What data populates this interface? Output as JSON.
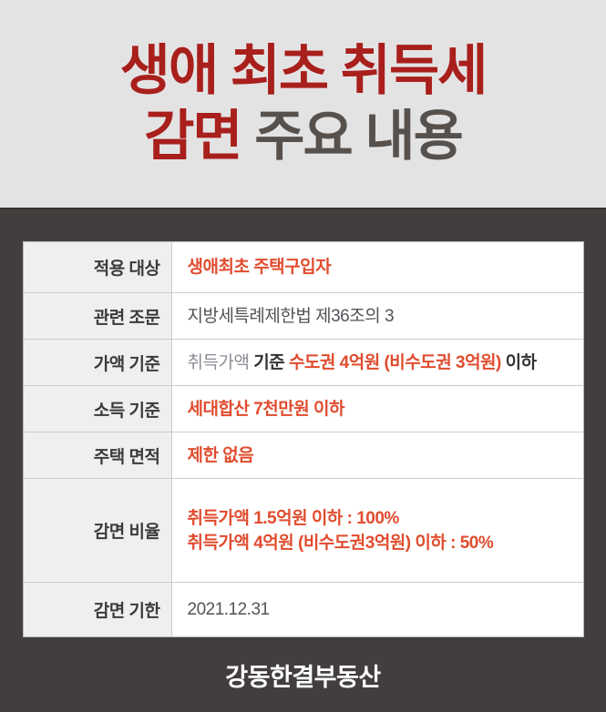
{
  "title": {
    "line1": "생애 최초 취득세",
    "line2_red": "감면",
    "line2_dark": " 주요 내용"
  },
  "colors": {
    "top_background": "#e4e3e3",
    "title_red": "#a81f1c",
    "title_dark_gray": "#56514d",
    "dark_background": "#433e3e",
    "label_cell_background": "#f0eff0",
    "accent_red": "#e04c2e",
    "value_dark": "#353132",
    "value_gray": "#555258",
    "value_muted_gray": "#8e8d95",
    "footer_text": "#ffffff"
  },
  "table": {
    "rows": [
      {
        "label": "적용 대상",
        "lines": [
          [
            {
              "t": "생애최초 주택구입자",
              "s": "red"
            }
          ]
        ]
      },
      {
        "label": "관련 조문",
        "lines": [
          [
            {
              "t": "지방세특례제한법 제36조의 3",
              "s": "gray"
            }
          ]
        ]
      },
      {
        "label": "가액 기준",
        "lines": [
          [
            {
              "t": "취득가액 ",
              "s": "muted"
            },
            {
              "t": "기준 ",
              "s": "dark"
            },
            {
              "t": "수도권 4억원 (비수도권 3억원)",
              "s": "red"
            },
            {
              "t": " 이하",
              "s": "dark"
            }
          ]
        ]
      },
      {
        "label": "소득 기준",
        "lines": [
          [
            {
              "t": "세대합산 7천만원 이하",
              "s": "red"
            }
          ]
        ]
      },
      {
        "label": "주택 면적",
        "lines": [
          [
            {
              "t": "제한 없음",
              "s": "red"
            }
          ]
        ]
      },
      {
        "label": "감면 비율",
        "lines": [
          [
            {
              "t": "취득가액 1.5억원 이하 : 100%",
              "s": "red"
            }
          ],
          [
            {
              "t": "취득가액 4억원 (비수도권3억원) 이하 : 50%",
              "s": "red"
            }
          ]
        ]
      },
      {
        "label": "감면 기한",
        "lines": [
          [
            {
              "t": "2021.12.31",
              "s": "gray"
            }
          ]
        ]
      }
    ]
  },
  "footer": {
    "brand": "강동한결부동산"
  }
}
